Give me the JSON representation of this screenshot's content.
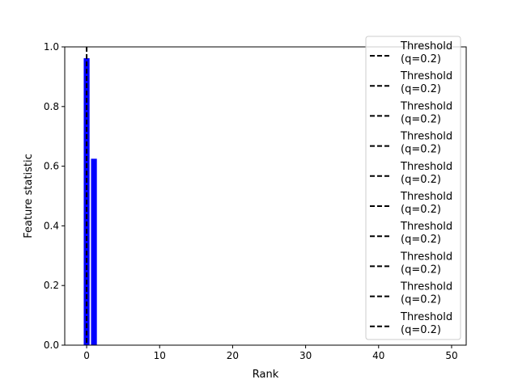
{
  "chart_data": {
    "type": "bar",
    "xlabel": "Rank",
    "ylabel": "Feature statistic",
    "xlim": [
      -3,
      52
    ],
    "ylim": [
      0,
      1.0
    ],
    "xticks": [
      0,
      10,
      20,
      30,
      40,
      50
    ],
    "yticks": [
      0.0,
      0.2,
      0.4,
      0.6,
      0.8,
      1.0
    ],
    "xtick_labels": [
      "0",
      "10",
      "20",
      "30",
      "40",
      "50"
    ],
    "ytick_labels": [
      "0.0",
      "0.2",
      "0.4",
      "0.6",
      "0.8",
      "1.0"
    ],
    "bars": [
      {
        "x": 0,
        "value": 0.962
      },
      {
        "x": 1,
        "value": 0.625
      }
    ],
    "bar_color": "#0000ff",
    "threshold_x": 0,
    "threshold_color": "#000000",
    "legend": {
      "placement": "right",
      "entries": [
        "Threshold\n(q=0.2)",
        "Threshold\n(q=0.2)",
        "Threshold\n(q=0.2)",
        "Threshold\n(q=0.2)",
        "Threshold\n(q=0.2)",
        "Threshold\n(q=0.2)",
        "Threshold\n(q=0.2)",
        "Threshold\n(q=0.2)",
        "Threshold\n(q=0.2)",
        "Threshold\n(q=0.2)"
      ]
    }
  }
}
